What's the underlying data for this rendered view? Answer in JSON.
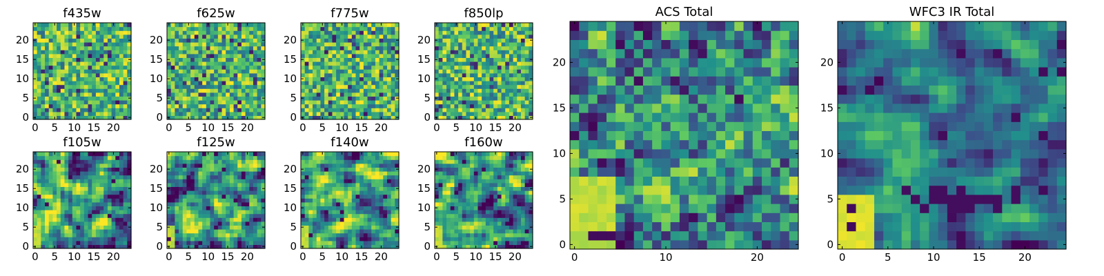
{
  "colormap": "viridis",
  "colors": [
    "#440154",
    "#3b528b",
    "#21918c",
    "#5ec962",
    "#fde725"
  ],
  "chart_data": [
    {
      "type": "heatmap",
      "title": "f435w",
      "shape": [
        25,
        25
      ],
      "xlim": [
        0,
        25
      ],
      "ylim": [
        0,
        25
      ],
      "xticks": [
        0,
        5,
        10,
        15,
        20
      ],
      "yticks": [
        0,
        5,
        10,
        15,
        20
      ],
      "xticklabels": [
        "0",
        "5",
        "10",
        "15",
        "20"
      ],
      "yticklabels": [
        "0",
        "5",
        "10",
        "15",
        "20"
      ],
      "style": "uniform",
      "seed": 11
    },
    {
      "type": "heatmap",
      "title": "f625w",
      "shape": [
        25,
        25
      ],
      "xlim": [
        0,
        25
      ],
      "ylim": [
        0,
        25
      ],
      "xticks": [
        0,
        5,
        10,
        15,
        20
      ],
      "yticks": [
        0,
        5,
        10,
        15,
        20
      ],
      "xticklabels": [
        "0",
        "5",
        "10",
        "15",
        "20"
      ],
      "yticklabels": [
        "0",
        "5",
        "10",
        "15",
        "20"
      ],
      "style": "uniform",
      "seed": 23
    },
    {
      "type": "heatmap",
      "title": "f775w",
      "shape": [
        25,
        25
      ],
      "xlim": [
        0,
        25
      ],
      "ylim": [
        0,
        25
      ],
      "xticks": [
        0,
        5,
        10,
        15,
        20
      ],
      "yticks": [
        0,
        5,
        10,
        15,
        20
      ],
      "xticklabels": [
        "0",
        "5",
        "10",
        "15",
        "20"
      ],
      "yticklabels": [
        "0",
        "5",
        "10",
        "15",
        "20"
      ],
      "style": "uniform",
      "seed": 37
    },
    {
      "type": "heatmap",
      "title": "f850lp",
      "shape": [
        25,
        25
      ],
      "xlim": [
        0,
        25
      ],
      "ylim": [
        0,
        25
      ],
      "xticks": [
        0,
        5,
        10,
        15,
        20
      ],
      "yticks": [
        0,
        5,
        10,
        15,
        20
      ],
      "xticklabels": [
        "0",
        "5",
        "10",
        "15",
        "20"
      ],
      "yticklabels": [
        "0",
        "5",
        "10",
        "15",
        "20"
      ],
      "style": "uniform",
      "seed": 41
    },
    {
      "type": "heatmap",
      "title": "f105w",
      "shape": [
        25,
        25
      ],
      "xlim": [
        0,
        25
      ],
      "ylim": [
        0,
        25
      ],
      "xticks": [
        0,
        5,
        10,
        15,
        20
      ],
      "yticks": [
        0,
        5,
        10,
        15,
        20
      ],
      "xticklabels": [
        "0",
        "5",
        "10",
        "15",
        "20"
      ],
      "yticklabels": [
        "0",
        "5",
        "10",
        "15",
        "20"
      ],
      "style": "smooth",
      "seed": 53
    },
    {
      "type": "heatmap",
      "title": "f125w",
      "shape": [
        25,
        25
      ],
      "xlim": [
        0,
        25
      ],
      "ylim": [
        0,
        25
      ],
      "xticks": [
        0,
        5,
        10,
        15,
        20
      ],
      "yticks": [
        0,
        5,
        10,
        15,
        20
      ],
      "xticklabels": [
        "0",
        "5",
        "10",
        "15",
        "20"
      ],
      "yticklabels": [
        "0",
        "5",
        "10",
        "15",
        "20"
      ],
      "style": "smooth",
      "seed": 67
    },
    {
      "type": "heatmap",
      "title": "f140w",
      "shape": [
        25,
        25
      ],
      "xlim": [
        0,
        25
      ],
      "ylim": [
        0,
        25
      ],
      "xticks": [
        0,
        5,
        10,
        15,
        20
      ],
      "yticks": [
        0,
        5,
        10,
        15,
        20
      ],
      "xticklabels": [
        "0",
        "5",
        "10",
        "15",
        "20"
      ],
      "yticklabels": [
        "0",
        "5",
        "10",
        "15",
        "20"
      ],
      "style": "smooth",
      "seed": 71
    },
    {
      "type": "heatmap",
      "title": "f160w",
      "shape": [
        25,
        25
      ],
      "xlim": [
        0,
        25
      ],
      "ylim": [
        0,
        25
      ],
      "xticks": [
        0,
        5,
        10,
        15,
        20
      ],
      "yticks": [
        0,
        5,
        10,
        15,
        20
      ],
      "xticklabels": [
        "0",
        "5",
        "10",
        "15",
        "20"
      ],
      "yticklabels": [
        "0",
        "5",
        "10",
        "15",
        "20"
      ],
      "style": "smooth",
      "seed": 83
    },
    {
      "type": "heatmap",
      "title": "ACS Total",
      "shape": [
        25,
        25
      ],
      "xlim": [
        0,
        25
      ],
      "ylim": [
        0,
        25
      ],
      "xticks": [
        0,
        10,
        20
      ],
      "yticks": [
        0,
        5,
        10,
        15,
        20
      ],
      "xticklabels": [
        "0",
        "10",
        "20"
      ],
      "yticklabels": [
        "0",
        "5",
        "10",
        "15",
        "20"
      ],
      "style": "acs",
      "seed": 97
    },
    {
      "type": "heatmap",
      "title": "WFC3 IR Total",
      "shape": [
        25,
        25
      ],
      "xlim": [
        0,
        25
      ],
      "ylim": [
        0,
        25
      ],
      "xticks": [
        0,
        5,
        10,
        15,
        20
      ],
      "yticks": [
        0,
        5,
        10,
        15,
        20
      ],
      "xticklabels": [
        "0",
        "5",
        "10",
        "15",
        "20"
      ],
      "yticklabels": [
        "0",
        "5",
        "10",
        "15",
        "20"
      ],
      "style": "ir",
      "seed": 101
    }
  ]
}
